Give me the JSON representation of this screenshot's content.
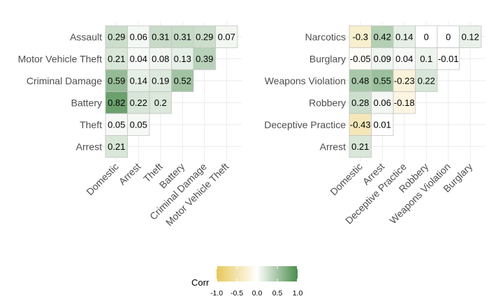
{
  "chart_data": [
    {
      "type": "heatmap",
      "rows": [
        "Assault",
        "Motor Vehicle Theft",
        "Criminal Damage",
        "Battery",
        "Theft",
        "Arrest"
      ],
      "columns": [
        "Domestic",
        "Arrest",
        "Theft",
        "Battery",
        "Criminal Damage",
        "Motor Vehicle Theft"
      ],
      "values": [
        [
          0.29,
          0.06,
          0.31,
          0.31,
          0.29,
          0.07
        ],
        [
          0.21,
          0.04,
          0.08,
          0.13,
          0.39,
          null
        ],
        [
          0.59,
          0.14,
          0.19,
          0.52,
          null,
          null
        ],
        [
          0.82,
          0.22,
          0.2,
          null,
          null,
          null
        ],
        [
          0.05,
          0.05,
          null,
          null,
          null,
          null
        ],
        [
          0.21,
          null,
          null,
          null,
          null,
          null
        ]
      ],
      "labels": [
        [
          "0.29",
          "0.06",
          "0.31",
          "0.31",
          "0.29",
          "0.07"
        ],
        [
          "0.21",
          "0.04",
          "0.08",
          "0.13",
          "0.39",
          ""
        ],
        [
          "0.59",
          "0.14",
          "0.19",
          "0.52",
          "",
          ""
        ],
        [
          "0.82",
          "0.22",
          "0.2",
          "",
          "",
          ""
        ],
        [
          "0.05",
          "0.05",
          "",
          "",
          "",
          ""
        ],
        [
          "0.21",
          "",
          "",
          "",
          "",
          ""
        ]
      ]
    },
    {
      "type": "heatmap",
      "rows": [
        "Narcotics",
        "Burglary",
        "Weapons Violation",
        "Robbery",
        "Deceptive Practice",
        "Arrest"
      ],
      "columns": [
        "Domestic",
        "Arrest",
        "Deceptive Practice",
        "Robbery",
        "Weapons Violation",
        "Burglary"
      ],
      "values": [
        [
          -0.3,
          0.42,
          0.14,
          0,
          0,
          0.12
        ],
        [
          -0.05,
          0.09,
          0.04,
          0.1,
          -0.01,
          null
        ],
        [
          0.48,
          0.55,
          -0.23,
          0.22,
          null,
          null
        ],
        [
          0.28,
          0.06,
          -0.18,
          null,
          null,
          null
        ],
        [
          -0.43,
          0.01,
          null,
          null,
          null,
          null
        ],
        [
          0.21,
          null,
          null,
          null,
          null,
          null
        ]
      ],
      "labels": [
        [
          "-0.3",
          "0.42",
          "0.14",
          "0",
          "0",
          "0.12"
        ],
        [
          "-0.05",
          "0.09",
          "0.04",
          "0.1",
          "-0.01",
          ""
        ],
        [
          "0.48",
          "0.55",
          "-0.23",
          "0.22",
          "",
          ""
        ],
        [
          "0.28",
          "0.06",
          "-0.18",
          "",
          "",
          ""
        ],
        [
          "-0.43",
          "0.01",
          "",
          "",
          "",
          ""
        ],
        [
          "0.21",
          "",
          "",
          "",
          "",
          ""
        ]
      ]
    }
  ],
  "legend": {
    "title": "Corr",
    "ticks": [
      "-1.0",
      "-0.5",
      "0.0",
      "0.5",
      "1.0"
    ],
    "tick_values": [
      -1,
      -0.5,
      0,
      0.5,
      1
    ],
    "range": [
      -1,
      1
    ]
  },
  "colors": {
    "low": "#E8C85A",
    "mid": "#FFFFFF",
    "high": "#4A8C4C",
    "grid": "#EBEBEB",
    "tile_border": "#C4C4C4",
    "axis_text": "#4D4D4D",
    "cell_text": "#000000"
  }
}
